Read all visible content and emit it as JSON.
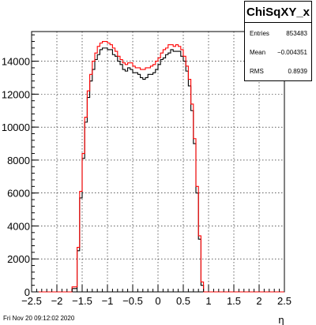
{
  "stats": {
    "title": "ChiSqXY_x",
    "rows": [
      {
        "key": "Entries",
        "value": "853483"
      },
      {
        "key": "Mean",
        "value": "−0.004351"
      },
      {
        "key": "RMS",
        "value": "0.8939"
      }
    ]
  },
  "footer": {
    "timestamp": "Fri Nov 20 09:12:02 2020"
  },
  "colors": {
    "series_black": "#000000",
    "series_red": "#ff0000",
    "grid": "#000000"
  },
  "chart_data": {
    "type": "histogram",
    "xlabel": "η",
    "ylabel": "",
    "xlim": [
      -2.5,
      2.5
    ],
    "ylim": [
      0,
      15800
    ],
    "grid": true,
    "xticks": [
      "−2.5",
      "−2",
      "−1.5",
      "−1",
      "−0.5",
      "0",
      "0.5",
      "1",
      "1.5",
      "2",
      "2.5"
    ],
    "yticks": [
      "0",
      "2000",
      "4000",
      "6000",
      "8000",
      "10000",
      "12000",
      "14000"
    ],
    "bin_edges": [
      -1.7,
      -1.6,
      -1.55,
      -1.5,
      -1.45,
      -1.4,
      -1.35,
      -1.3,
      -1.25,
      -1.2,
      -1.15,
      -1.1,
      -1.05,
      -1.0,
      -0.95,
      -0.9,
      -0.85,
      -0.8,
      -0.75,
      -0.7,
      -0.65,
      -0.6,
      -0.55,
      -0.5,
      -0.45,
      -0.4,
      -0.35,
      -0.3,
      -0.25,
      -0.2,
      -0.15,
      -0.1,
      -0.05,
      0.0,
      0.05,
      0.1,
      0.15,
      0.2,
      0.25,
      0.3,
      0.35,
      0.4,
      0.45,
      0.5,
      0.55,
      0.6,
      0.65,
      0.7,
      0.75,
      0.8,
      0.85,
      0.9,
      0.95,
      1.0,
      1.05,
      1.1,
      1.15,
      1.2,
      1.25,
      1.3,
      1.35,
      1.4,
      1.45,
      1.5,
      1.55,
      1.6,
      1.65,
      1.7
    ],
    "series": [
      {
        "color": "#000000",
        "values": [
          200,
          2500,
          5700,
          8100,
          10300,
          11800,
          12800,
          13500,
          14100,
          14400,
          14700,
          14800,
          14800,
          14700,
          14700,
          14400,
          14300,
          14000,
          13800,
          13500,
          13400,
          13600,
          13500,
          13300,
          13300,
          13200,
          13000,
          12900,
          13000,
          13200,
          13200,
          13300,
          13500,
          13800,
          14100,
          14200,
          14400,
          14500,
          14700,
          14600,
          14600,
          14600,
          14300,
          14000,
          13400,
          12500,
          11000,
          9000,
          6000,
          3200,
          400,
          0,
          0,
          0,
          0,
          0,
          0,
          0,
          0,
          0,
          0,
          0,
          0,
          0,
          0,
          0,
          0
        ]
      },
      {
        "color": "#ff0000",
        "values": [
          300,
          2700,
          6100,
          8400,
          10600,
          12200,
          13200,
          14000,
          14500,
          14900,
          15100,
          15200,
          15200,
          15100,
          15000,
          14800,
          14600,
          14300,
          14100,
          13900,
          13800,
          13900,
          13900,
          13700,
          13600,
          13600,
          13500,
          13500,
          13600,
          13600,
          13700,
          13800,
          14000,
          14200,
          14500,
          14700,
          14800,
          15000,
          15000,
          14900,
          15000,
          14900,
          14700,
          14300,
          13700,
          12900,
          11400,
          9300,
          6400,
          3400,
          600,
          0,
          0,
          0,
          0,
          0,
          0,
          0,
          0,
          0,
          0,
          0,
          0,
          0,
          0,
          0,
          0
        ]
      }
    ]
  }
}
